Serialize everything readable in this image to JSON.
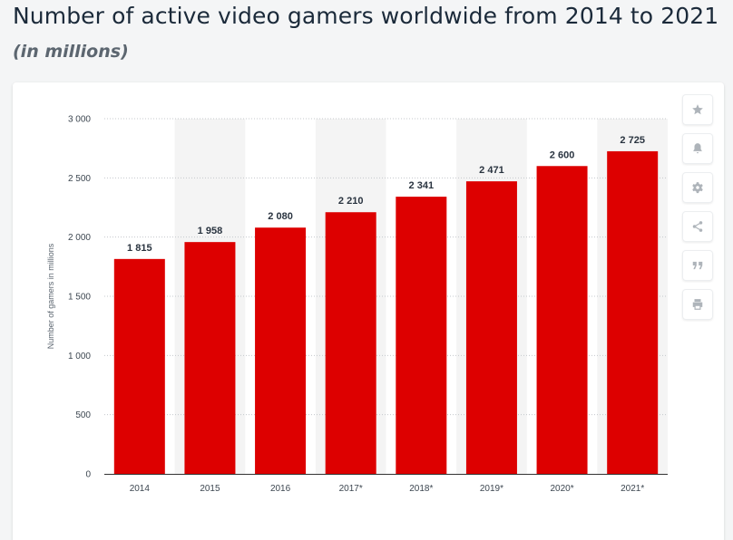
{
  "header": {
    "title": "Number of active video gamers worldwide from 2014 to 2021",
    "subtitle": "(in millions)"
  },
  "toolbar": {
    "buttons": [
      {
        "name": "favorite",
        "icon": "star-icon"
      },
      {
        "name": "notification",
        "icon": "bell-icon"
      },
      {
        "name": "settings",
        "icon": "gear-icon"
      },
      {
        "name": "share",
        "icon": "share-icon"
      },
      {
        "name": "cite",
        "icon": "quote-icon"
      },
      {
        "name": "print",
        "icon": "print-icon"
      }
    ]
  },
  "colors": {
    "bar": "#dd0000",
    "band": "#f4f4f4",
    "grid": "#c4c8cc",
    "axis": "#333333"
  },
  "chart_data": {
    "type": "bar",
    "title": "",
    "xlabel": "",
    "ylabel": "Number of gamers in millions",
    "categories": [
      "2014",
      "2015",
      "2016",
      "2017*",
      "2018*",
      "2019*",
      "2020*",
      "2021*"
    ],
    "values": [
      1815,
      1958,
      2080,
      2210,
      2341,
      2471,
      2600,
      2725
    ],
    "value_labels": [
      "1 815",
      "1 958",
      "2 080",
      "2 210",
      "2 341",
      "2 471",
      "2 600",
      "2 725"
    ],
    "ylim": [
      0,
      3000
    ],
    "yticks": [
      0,
      500,
      1000,
      1500,
      2000,
      2500,
      3000
    ],
    "ytick_labels": [
      "0",
      "500",
      "1 000",
      "1 500",
      "2 000",
      "2 500",
      "3 000"
    ],
    "grid": true,
    "legend": "none"
  }
}
